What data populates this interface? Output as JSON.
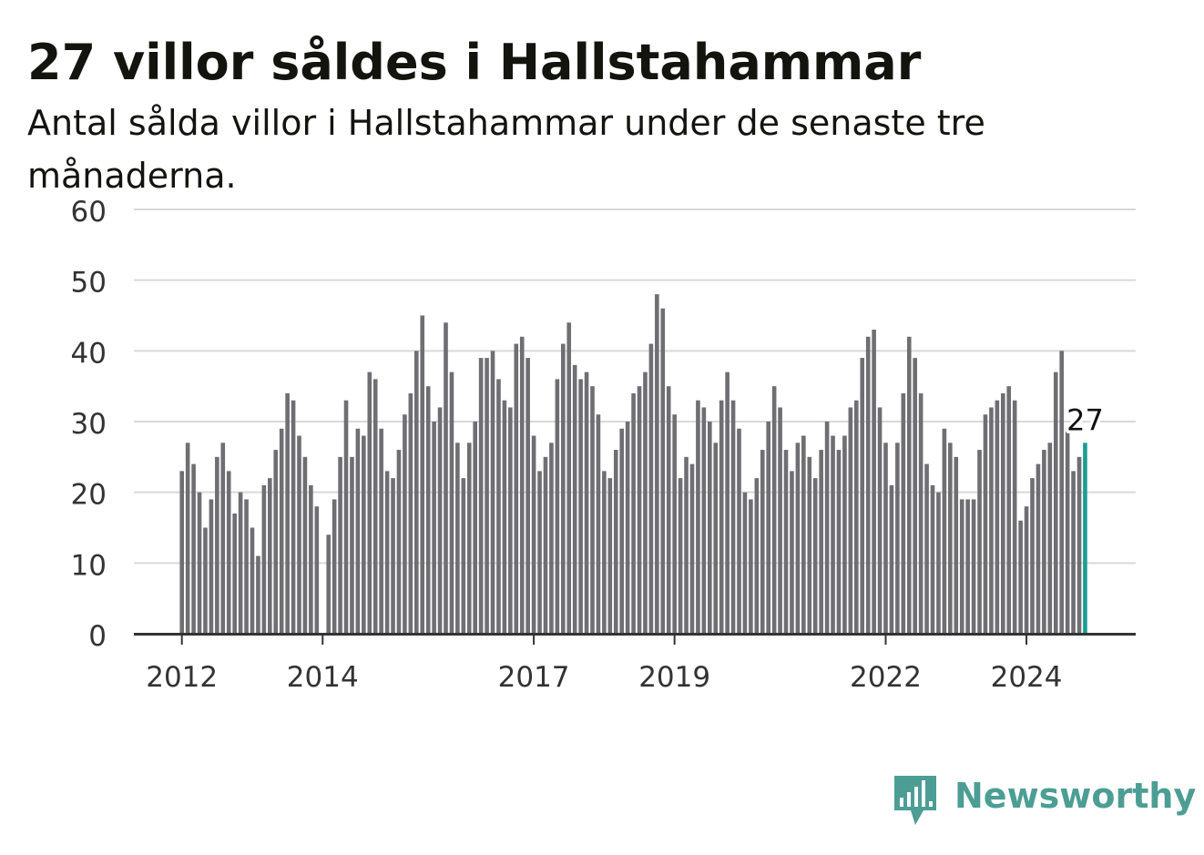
{
  "title": "27 villor såldes i Hallstahammar",
  "subtitle": "Antal sålda villor i Hallstahammar under de senaste tre månaderna.",
  "brand": {
    "name": "Newsworthy",
    "icon": "bar-chart-speech-bubble-icon"
  },
  "colors": {
    "bar": "#6e6e73",
    "highlight": "#1a9e93",
    "grid": "#d9d9d9",
    "axis": "#333333",
    "brand": "#4c9e94"
  },
  "chart_data": {
    "type": "bar",
    "title": "27 villor såldes i Hallstahammar",
    "subtitle": "Antal sålda villor i Hallstahammar under de senaste tre månaderna.",
    "xlabel": "",
    "ylabel": "",
    "ylim": [
      0,
      60
    ],
    "yticks": [
      0,
      10,
      20,
      30,
      40,
      50,
      60
    ],
    "xticks": [
      "2012",
      "2014",
      "2017",
      "2019",
      "2022",
      "2024"
    ],
    "grid": true,
    "start": "2012-01",
    "values": [
      23,
      27,
      24,
      20,
      15,
      19,
      25,
      27,
      23,
      17,
      20,
      19,
      15,
      11,
      21,
      22,
      26,
      29,
      34,
      33,
      28,
      25,
      21,
      18,
      null,
      14,
      19,
      25,
      33,
      25,
      29,
      28,
      37,
      36,
      29,
      23,
      22,
      26,
      31,
      34,
      40,
      45,
      35,
      30,
      32,
      44,
      37,
      27,
      22,
      27,
      30,
      39,
      39,
      40,
      36,
      33,
      32,
      41,
      42,
      39,
      28,
      23,
      25,
      27,
      36,
      41,
      44,
      38,
      36,
      37,
      35,
      31,
      23,
      22,
      26,
      29,
      30,
      34,
      35,
      37,
      41,
      48,
      46,
      35,
      31,
      22,
      25,
      24,
      33,
      32,
      30,
      27,
      33,
      37,
      33,
      29,
      20,
      19,
      22,
      26,
      30,
      35,
      32,
      26,
      23,
      27,
      28,
      25,
      22,
      26,
      30,
      28,
      26,
      28,
      32,
      33,
      39,
      42,
      43,
      32,
      27,
      21,
      27,
      34,
      42,
      39,
      34,
      24,
      21,
      20,
      29,
      27,
      25,
      19,
      19,
      19,
      26,
      31,
      32,
      33,
      34,
      35,
      33,
      16,
      18,
      22,
      24,
      26,
      27,
      37,
      40,
      29,
      23,
      25,
      27
    ],
    "highlight_value": 27,
    "data_label": "27"
  }
}
